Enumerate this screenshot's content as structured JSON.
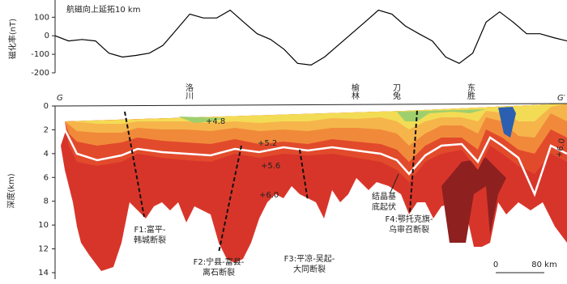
{
  "chart_data": [
    {
      "type": "line",
      "title": "航磁向上延拓10 km",
      "ylabel": "磁化率(nT)",
      "color": "#000000",
      "values": [
        0,
        -28,
        -20,
        -28,
        -94,
        -115,
        -106,
        -94,
        -52,
        32,
        117,
        96,
        96,
        138,
        74,
        11,
        -20,
        -73,
        -149,
        -158,
        -115,
        -52,
        11,
        74,
        138,
        117,
        53,
        11,
        -28,
        -115,
        -149,
        -94,
        74,
        129,
        74,
        11,
        11,
        -10,
        -28
      ],
      "ylim": [
        -200,
        180
      ],
      "yticks": [
        -200,
        -100,
        0,
        100
      ]
    },
    {
      "type": "section",
      "ylabel": "深度(km)",
      "ylim": [
        0,
        14
      ],
      "inverted": true,
      "yticks": [
        0,
        2,
        4,
        6,
        8,
        10,
        12,
        14
      ],
      "place_labels": [
        "洛川",
        "榆林",
        "刀兔",
        "东胜"
      ],
      "profile_ends": [
        "G",
        "G′"
      ],
      "contour_labels": [
        "+4.8",
        "+5.2",
        "+5.6",
        "+6.0",
        "+6.0"
      ],
      "annotation": [
        "结晶基",
        "底起伏"
      ],
      "faults": [
        [
          "F1:富平-",
          "韩城断裂"
        ],
        [
          "F2:宁县-富县-",
          "离石断裂"
        ],
        [
          "F3:平凉-吴起-",
          "大同断裂"
        ],
        [
          "F4:鄂托克旗-",
          "乌审召断裂"
        ]
      ],
      "scale_bar": [
        "0",
        "80 km"
      ]
    }
  ]
}
